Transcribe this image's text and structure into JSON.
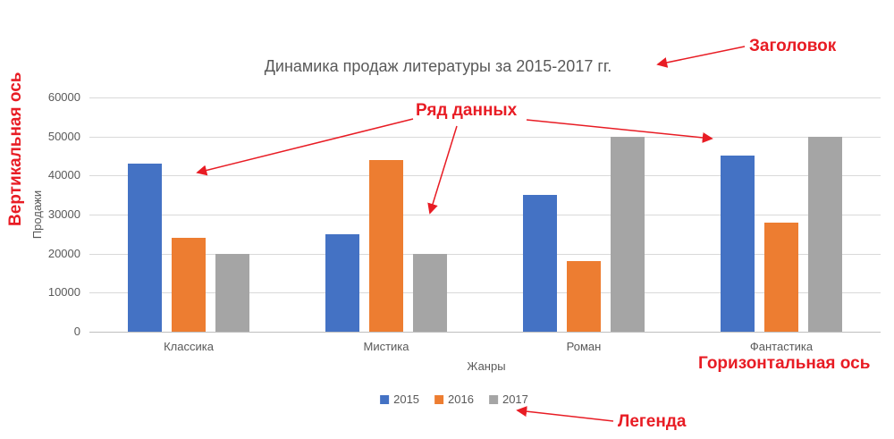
{
  "chart_data": {
    "type": "bar",
    "title": "Динамика продаж литературы за 2015-2017 гг.",
    "categories": [
      "Классика",
      "Мистика",
      "Роман",
      "Фантастика"
    ],
    "series": [
      {
        "name": "2015",
        "color": "#4472c4",
        "values": [
          43000,
          25000,
          35000,
          45000
        ]
      },
      {
        "name": "2016",
        "color": "#ed7d31",
        "values": [
          24000,
          44000,
          18000,
          28000
        ]
      },
      {
        "name": "2017",
        "color": "#a5a5a5",
        "values": [
          20000,
          20000,
          50000,
          50000
        ]
      }
    ],
    "xlabel": "Жанры",
    "ylabel": "Продажи",
    "ylim": [
      0,
      60000
    ],
    "ytick_step": 10000,
    "yticks": [
      "60000",
      "50000",
      "40000",
      "30000",
      "20000",
      "10000",
      "0"
    ],
    "grid": true,
    "legend_position": "bottom",
    "text_color": "#595959"
  },
  "annotations": {
    "color": "#e81c24",
    "title_label": "Заголовок",
    "vertical_axis_label": "Вертикальная ось",
    "data_series_label": "Ряд данных",
    "horizontal_axis_label": "Горизонтальная ось",
    "legend_label": "Легенда"
  }
}
